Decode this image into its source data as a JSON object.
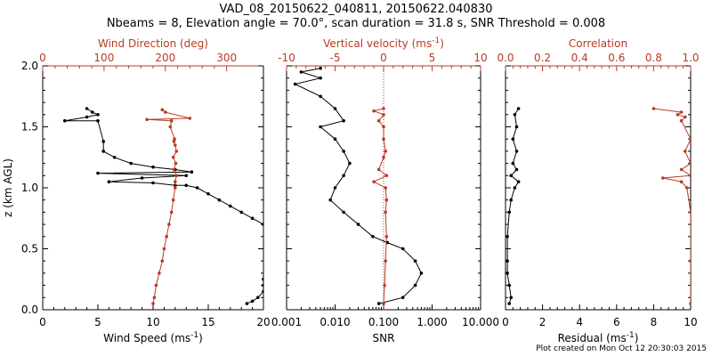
{
  "titles": {
    "line1": "VAD_08_20150622_040811, 20150622.040830",
    "line2": "Nbeams = 8, Elevation angle = 70.0°, scan duration = 31.8 s, SNR Threshold = 0.008"
  },
  "credit": "Plot created on Mon Oct 12 20:30:03 2015",
  "colors": {
    "black": "#000000",
    "red": "#b83b24"
  },
  "chart_data": [
    {
      "type": "line",
      "ylabel": "z (km AGL)",
      "ylim": [
        0.0,
        2.0
      ],
      "yticks": [
        "0.0",
        "0.5",
        "1.0",
        "1.5",
        "2.0"
      ],
      "xlabel_bottom": "Wind Speed (ms",
      "xlabel_bottom_sup": "-1",
      "xlim_bottom": [
        0,
        20
      ],
      "xticks_bottom": [
        "0",
        "5",
        "10",
        "15",
        "20"
      ],
      "xlabel_top": "Wind Direction (deg)",
      "xlim_top": [
        0,
        360
      ],
      "xticks_top": [
        "0",
        "100",
        "200",
        "300"
      ],
      "series": [
        {
          "axis": "bottom",
          "color": "black",
          "points": [
            [
              18.5,
              0.05
            ],
            [
              19.0,
              0.07
            ],
            [
              19.5,
              0.1
            ],
            [
              20.0,
              0.15
            ],
            [
              20.0,
              0.2
            ],
            [
              20.0,
              0.25
            ],
            [
              20.5,
              0.35
            ],
            [
              20.5,
              0.45
            ],
            [
              20.5,
              0.6
            ],
            [
              20.0,
              0.7
            ],
            [
              19.0,
              0.75
            ],
            [
              18.0,
              0.8
            ],
            [
              17.0,
              0.85
            ],
            [
              16.0,
              0.9
            ],
            [
              15.0,
              0.95
            ],
            [
              14.0,
              1.0
            ],
            [
              13.0,
              1.02
            ],
            [
              12.0,
              1.02
            ],
            [
              10.0,
              1.04
            ],
            [
              6.0,
              1.05
            ],
            [
              9.0,
              1.08
            ],
            [
              13.0,
              1.1
            ],
            [
              5.0,
              1.12
            ],
            [
              13.5,
              1.13
            ],
            [
              12.0,
              1.15
            ],
            [
              10.0,
              1.17
            ],
            [
              8.0,
              1.2
            ],
            [
              6.5,
              1.25
            ],
            [
              5.5,
              1.3
            ],
            [
              5.5,
              1.38
            ],
            [
              5.0,
              1.55
            ],
            [
              2.0,
              1.55
            ],
            [
              4.0,
              1.58
            ],
            [
              5.0,
              1.6
            ],
            [
              4.5,
              1.62
            ],
            [
              4.0,
              1.65
            ]
          ]
        },
        {
          "axis": "top",
          "color": "red",
          "points": [
            [
              180,
              0.05
            ],
            [
              182,
              0.1
            ],
            [
              185,
              0.2
            ],
            [
              190,
              0.3
            ],
            [
              195,
              0.4
            ],
            [
              198,
              0.5
            ],
            [
              202,
              0.6
            ],
            [
              206,
              0.7
            ],
            [
              210,
              0.8
            ],
            [
              213,
              0.9
            ],
            [
              216,
              1.0
            ],
            [
              216,
              1.05
            ],
            [
              218,
              1.1
            ],
            [
              214,
              1.15
            ],
            [
              217,
              1.2
            ],
            [
              213,
              1.25
            ],
            [
              218,
              1.3
            ],
            [
              216,
              1.35
            ],
            [
              214,
              1.38
            ],
            [
              215,
              1.4
            ],
            [
              208,
              1.5
            ],
            [
              210,
              1.55
            ],
            [
              170,
              1.56
            ],
            [
              240,
              1.57
            ],
            [
              200,
              1.62
            ],
            [
              195,
              1.64
            ]
          ]
        }
      ]
    },
    {
      "type": "line",
      "xlabel_bottom": "SNR",
      "xlim_bottom_log": [
        0.001,
        10.0
      ],
      "xticks_bottom": [
        "0.001",
        "0.010",
        "0.100",
        "1.000",
        "10.000"
      ],
      "xlabel_top": "Vertical velocity (ms",
      "xlabel_top_sup": "-1",
      "xlim_top": [
        -10,
        10
      ],
      "xticks_top": [
        "-10",
        "-5",
        "0",
        "5",
        "10"
      ],
      "zero_line": 0,
      "series": [
        {
          "axis": "bottom",
          "color": "black",
          "points": [
            [
              0.08,
              0.05
            ],
            [
              0.25,
              0.1
            ],
            [
              0.45,
              0.2
            ],
            [
              0.6,
              0.3
            ],
            [
              0.45,
              0.4
            ],
            [
              0.25,
              0.5
            ],
            [
              0.12,
              0.55
            ],
            [
              0.06,
              0.6
            ],
            [
              0.03,
              0.7
            ],
            [
              0.015,
              0.8
            ],
            [
              0.008,
              0.9
            ],
            [
              0.01,
              1.0
            ],
            [
              0.015,
              1.1
            ],
            [
              0.02,
              1.2
            ],
            [
              0.015,
              1.3
            ],
            [
              0.01,
              1.4
            ],
            [
              0.005,
              1.5
            ],
            [
              0.015,
              1.55
            ],
            [
              0.01,
              1.65
            ],
            [
              0.005,
              1.75
            ],
            [
              0.0015,
              1.85
            ],
            [
              0.005,
              1.9
            ],
            [
              0.002,
              1.95
            ],
            [
              0.005,
              1.98
            ]
          ]
        },
        {
          "axis": "top",
          "color": "red",
          "points": [
            [
              0.0,
              0.05
            ],
            [
              0.1,
              0.2
            ],
            [
              0.2,
              0.4
            ],
            [
              0.3,
              0.6
            ],
            [
              0.2,
              0.8
            ],
            [
              0.3,
              0.9
            ],
            [
              0.2,
              1.0
            ],
            [
              -1.0,
              1.05
            ],
            [
              0.3,
              1.1
            ],
            [
              -0.5,
              1.15
            ],
            [
              0.0,
              1.25
            ],
            [
              0.2,
              1.3
            ],
            [
              0.0,
              1.4
            ],
            [
              0.0,
              1.5
            ],
            [
              -0.5,
              1.55
            ],
            [
              0.0,
              1.6
            ],
            [
              -1.0,
              1.63
            ],
            [
              0.0,
              1.65
            ]
          ]
        }
      ]
    },
    {
      "type": "line",
      "xlabel_bottom": "Residual (ms",
      "xlabel_bottom_sup": "-1",
      "xlim_bottom": [
        0,
        10
      ],
      "xticks_bottom": [
        "0",
        "2",
        "4",
        "6",
        "8",
        "10"
      ],
      "xlabel_top": "Correlation",
      "xlim_top": [
        0.0,
        1.0
      ],
      "xticks_top": [
        "0.0",
        "0.2",
        "0.4",
        "0.6",
        "0.8",
        "1.0"
      ],
      "series": [
        {
          "axis": "bottom",
          "color": "black",
          "points": [
            [
              0.2,
              0.05
            ],
            [
              0.3,
              0.1
            ],
            [
              0.2,
              0.2
            ],
            [
              0.1,
              0.3
            ],
            [
              0.1,
              0.4
            ],
            [
              0.1,
              0.6
            ],
            [
              0.2,
              0.8
            ],
            [
              0.3,
              0.9
            ],
            [
              0.5,
              1.0
            ],
            [
              0.7,
              1.05
            ],
            [
              0.3,
              1.1
            ],
            [
              0.6,
              1.15
            ],
            [
              0.4,
              1.2
            ],
            [
              0.6,
              1.3
            ],
            [
              0.4,
              1.4
            ],
            [
              0.6,
              1.5
            ],
            [
              0.5,
              1.6
            ],
            [
              0.7,
              1.65
            ]
          ]
        },
        {
          "axis": "top",
          "color": "red",
          "points": [
            [
              1.0,
              0.05
            ],
            [
              1.0,
              0.4
            ],
            [
              1.0,
              0.8
            ],
            [
              0.98,
              1.0
            ],
            [
              0.95,
              1.05
            ],
            [
              0.85,
              1.08
            ],
            [
              1.0,
              1.1
            ],
            [
              0.95,
              1.15
            ],
            [
              1.0,
              1.2
            ],
            [
              0.97,
              1.3
            ],
            [
              1.0,
              1.4
            ],
            [
              0.95,
              1.55
            ],
            [
              0.97,
              1.58
            ],
            [
              0.93,
              1.6
            ],
            [
              0.95,
              1.62
            ],
            [
              0.8,
              1.65
            ]
          ]
        }
      ]
    }
  ]
}
